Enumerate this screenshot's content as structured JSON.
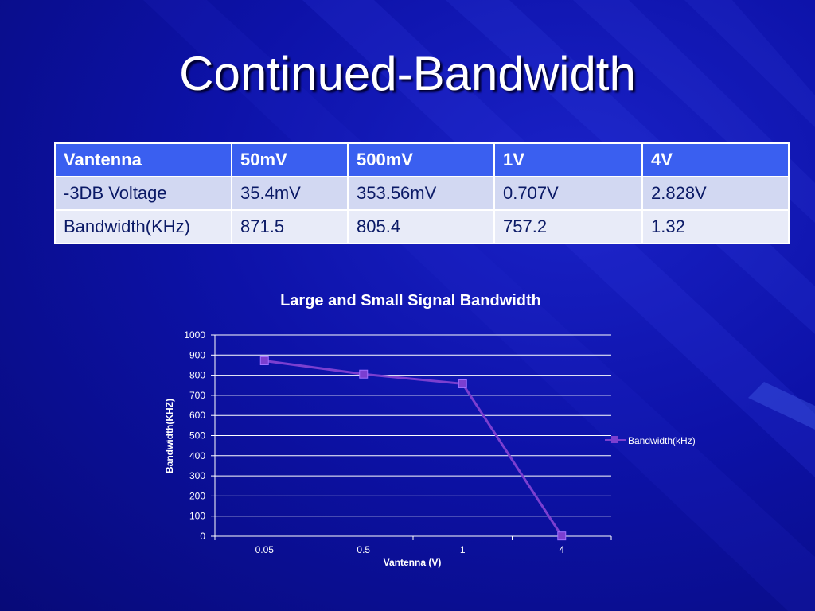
{
  "slide": {
    "title": "Continued-Bandwidth"
  },
  "table": {
    "header": [
      "Vantenna",
      "50mV",
      "500mV",
      "1V",
      "4V"
    ],
    "rows": [
      [
        "-3DB Voltage",
        "35.4mV",
        "353.56mV",
        "0.707V",
        "2.828V"
      ],
      [
        "Bandwidth(KHz)",
        "871.5",
        "805.4",
        "757.2",
        "1.32"
      ]
    ]
  },
  "chart_data": {
    "type": "line",
    "title": "Large and Small Signal Bandwidth",
    "xlabel": "Vantenna (V)",
    "ylabel": "Bandwidth(KHZ)",
    "categories": [
      "0.05",
      "0.5",
      "1",
      "4"
    ],
    "ylim": [
      0,
      1000
    ],
    "yticks": [
      0,
      100,
      200,
      300,
      400,
      500,
      600,
      700,
      800,
      900,
      1000
    ],
    "grid": true,
    "legend": "right",
    "series": [
      {
        "name": "Bandwidth(kHz)",
        "values": [
          871.5,
          805.4,
          757.2,
          1.32
        ],
        "color": "#7b3fd0"
      }
    ]
  },
  "colors": {
    "background": "#0d12a8",
    "table_header": "#3a5ff0",
    "line": "#7b3fd0"
  }
}
